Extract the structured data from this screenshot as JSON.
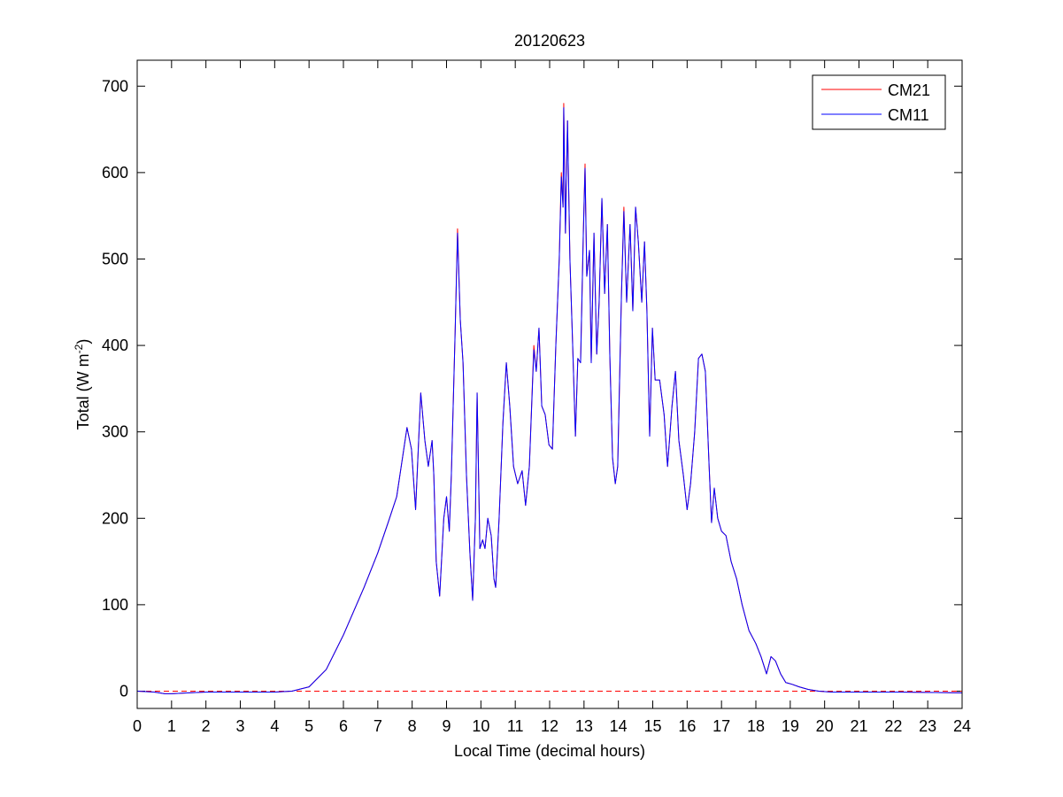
{
  "chart_data": {
    "type": "line",
    "title": "20120623",
    "xlabel": "Local Time (decimal hours)",
    "ylabel": {
      "text": "Total (W m",
      "sup": "-2",
      "end": ")"
    },
    "x": [
      0,
      0.5,
      0.8,
      1,
      1.5,
      2,
      3,
      4,
      4.5,
      5,
      5.5,
      6,
      6.6,
      7,
      7.3,
      7.55,
      7.7,
      7.85,
      7.98,
      8.1,
      8.2,
      8.25,
      8.37,
      8.47,
      8.58,
      8.63,
      8.7,
      8.8,
      8.92,
      9,
      9.08,
      9.14,
      9.25,
      9.32,
      9.4,
      9.48,
      9.58,
      9.68,
      9.76,
      9.84,
      9.89,
      9.97,
      10.05,
      10.12,
      10.2,
      10.3,
      10.38,
      10.43,
      10.53,
      10.64,
      10.74,
      10.84,
      10.95,
      11.07,
      11.2,
      11.3,
      11.41,
      11.54,
      11.61,
      11.69,
      11.77,
      11.87,
      11.98,
      12.08,
      12.18,
      12.28,
      12.34,
      12.39,
      12.41,
      12.46,
      12.52,
      12.59,
      12.67,
      12.75,
      12.82,
      12.9,
      12.98,
      13.03,
      13.08,
      13.16,
      13.21,
      13.29,
      13.37,
      13.44,
      13.52,
      13.6,
      13.68,
      13.75,
      13.83,
      13.91,
      13.98,
      14.09,
      14.16,
      14.24,
      14.34,
      14.42,
      14.5,
      14.58,
      14.68,
      14.76,
      14.83,
      14.91,
      14.99,
      15.07,
      15.2,
      15.33,
      15.43,
      15.56,
      15.66,
      15.76,
      15.89,
      16,
      16.1,
      16.22,
      16.33,
      16.43,
      16.53,
      16.64,
      16.71,
      16.79,
      16.89,
      17,
      17.13,
      17.28,
      17.44,
      17.6,
      17.8,
      18,
      18.15,
      18.31,
      18.44,
      18.57,
      18.72,
      18.87,
      19.05,
      19.26,
      19.52,
      19.83,
      20.2,
      22,
      24
    ],
    "series": [
      {
        "name": "CM21",
        "color": "#ff0000",
        "values": [
          0,
          -1,
          -3,
          -3,
          -2,
          -1,
          -1,
          -1,
          0,
          5,
          25,
          65,
          120,
          160,
          195,
          225,
          265,
          305,
          280,
          210,
          300,
          345,
          290,
          260,
          290,
          250,
          150,
          110,
          200,
          225,
          185,
          250,
          415,
          535,
          430,
          380,
          250,
          160,
          105,
          200,
          345,
          165,
          175,
          165,
          200,
          180,
          130,
          120,
          200,
          310,
          380,
          330,
          260,
          240,
          255,
          215,
          260,
          400,
          370,
          420,
          330,
          320,
          285,
          280,
          400,
          500,
          600,
          560,
          680,
          530,
          660,
          500,
          400,
          295,
          385,
          380,
          530,
          610,
          480,
          510,
          380,
          530,
          390,
          450,
          570,
          460,
          540,
          390,
          270,
          240,
          260,
          460,
          560,
          450,
          540,
          440,
          560,
          520,
          450,
          520,
          440,
          295,
          420,
          360,
          360,
          320,
          260,
          330,
          370,
          290,
          250,
          210,
          240,
          300,
          385,
          390,
          370,
          260,
          195,
          235,
          200,
          185,
          180,
          150,
          130,
          100,
          70,
          55,
          40,
          20,
          40,
          35,
          20,
          10,
          8,
          5,
          2,
          0,
          -1,
          -1,
          -2
        ]
      },
      {
        "name": "CM11",
        "color": "#0000ff",
        "values": [
          0,
          -1,
          -3,
          -3,
          -2,
          -1,
          -1,
          -1,
          0,
          5,
          25,
          65,
          120,
          160,
          195,
          225,
          265,
          305,
          280,
          210,
          300,
          345,
          290,
          260,
          290,
          250,
          150,
          110,
          200,
          225,
          185,
          250,
          415,
          530,
          430,
          380,
          250,
          160,
          105,
          200,
          345,
          165,
          175,
          165,
          200,
          180,
          130,
          120,
          200,
          310,
          380,
          330,
          260,
          240,
          255,
          215,
          260,
          395,
          370,
          420,
          330,
          320,
          285,
          280,
          400,
          500,
          595,
          560,
          675,
          530,
          660,
          500,
          400,
          295,
          385,
          380,
          530,
          605,
          480,
          510,
          380,
          530,
          390,
          450,
          570,
          460,
          540,
          390,
          270,
          240,
          260,
          460,
          555,
          450,
          540,
          440,
          560,
          520,
          450,
          520,
          440,
          295,
          420,
          360,
          360,
          320,
          260,
          330,
          370,
          290,
          250,
          210,
          240,
          300,
          385,
          390,
          370,
          260,
          195,
          235,
          200,
          185,
          180,
          150,
          130,
          100,
          70,
          55,
          40,
          20,
          40,
          35,
          20,
          10,
          8,
          5,
          2,
          0,
          -1,
          -1,
          -2
        ]
      }
    ],
    "reference_line": {
      "y": 0,
      "color": "#ff0000",
      "style": "dashed"
    },
    "xlim": [
      0,
      24
    ],
    "xticks": [
      0,
      1,
      2,
      3,
      4,
      5,
      6,
      7,
      8,
      9,
      10,
      11,
      12,
      13,
      14,
      15,
      16,
      17,
      18,
      19,
      20,
      21,
      22,
      23,
      24
    ],
    "ylim": [
      -20,
      730
    ],
    "yticks": [
      0,
      100,
      200,
      300,
      400,
      500,
      600,
      700
    ],
    "grid": false,
    "legend": "top-right"
  }
}
